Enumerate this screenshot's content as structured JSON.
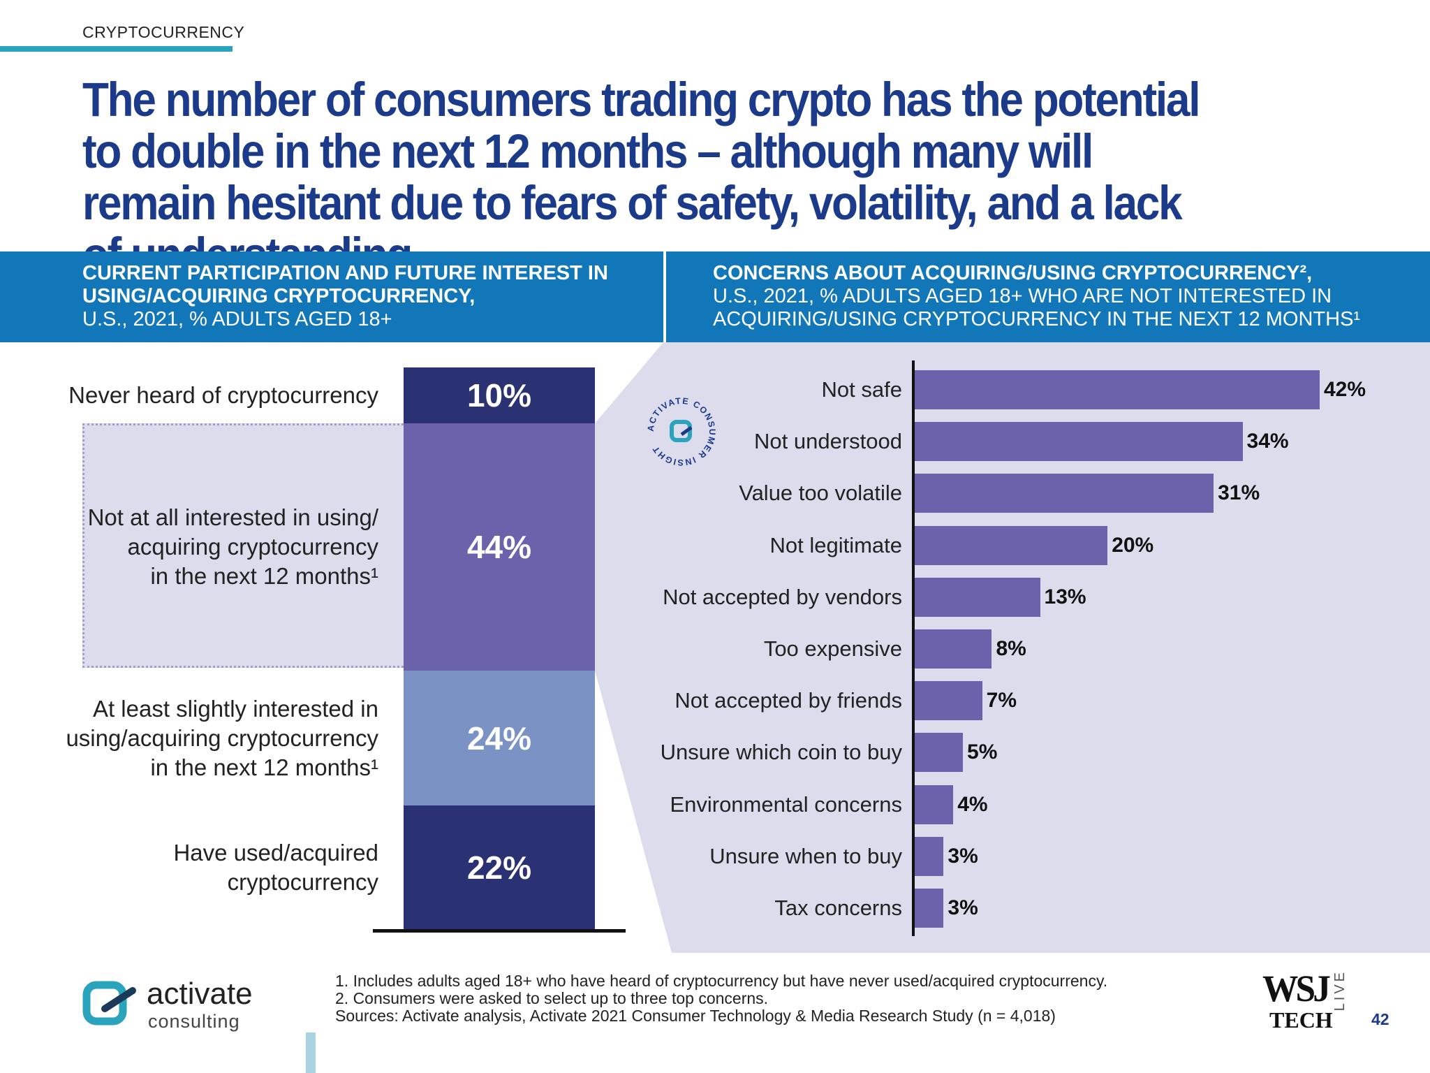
{
  "section_label": "CRYPTOCURRENCY",
  "headline": "The number of consumers trading crypto has the potential to double in the next 12 months – although many will remain hesitant due to fears of safety, volatility, and a lack of understanding",
  "left_header": {
    "title": "CURRENT PARTICIPATION AND FUTURE INTEREST IN USING/ACQUIRING CRYPTOCURRENCY,",
    "subtitle": "U.S., 2021, % ADULTS AGED 18+"
  },
  "right_header": {
    "title": "CONCERNS ABOUT ACQUIRING/USING CRYPTOCURRENCY²,",
    "subtitle": "U.S., 2021, % ADULTS AGED 18+ WHO ARE NOT INTERESTED IN ACQUIRING/USING CRYPTOCURRENCY IN THE NEXT 12 MONTHS¹"
  },
  "badge_text": "ACTIVATE CONSUMER INSIGHT",
  "chart_data": [
    {
      "type": "bar",
      "orientation": "stacked-vertical",
      "series": [
        {
          "name": "Never heard of cryptocurrency",
          "value": 10,
          "label": "10%",
          "color": "#2b3274"
        },
        {
          "name": "Not at all interested in using/ acquiring cryptocurrency in the next 12 months¹",
          "value": 44,
          "label": "44%",
          "color": "#6a62ab"
        },
        {
          "name": "At least slightly interested in using/acquiring cryptocurrency in the next 12 months¹",
          "value": 24,
          "label": "24%",
          "color": "#7b93c4"
        },
        {
          "name": "Have used/acquired cryptocurrency",
          "value": 22,
          "label": "22%",
          "color": "#2b3274"
        }
      ]
    },
    {
      "type": "bar",
      "orientation": "horizontal",
      "categories": [
        "Not safe",
        "Not understood",
        "Value too volatile",
        "Not legitimate",
        "Not accepted by vendors",
        "Too expensive",
        "Not accepted by friends",
        "Unsure which coin to buy",
        "Environmental concerns",
        "Unsure when to buy",
        "Tax concerns"
      ],
      "values": [
        42,
        34,
        31,
        20,
        13,
        8,
        7,
        5,
        4,
        3,
        3
      ],
      "value_labels": [
        "42%",
        "34%",
        "31%",
        "20%",
        "13%",
        "8%",
        "7%",
        "5%",
        "4%",
        "3%",
        "3%"
      ],
      "bar_color": "#6a62ab",
      "xlim": [
        0,
        42
      ]
    }
  ],
  "footnotes": [
    "1. Includes adults aged 18+ who have heard of cryptocurrency but have never used/acquired cryptocurrency.",
    "2. Consumers were asked to select up to three top concerns.",
    "Sources: Activate analysis, Activate 2021 Consumer Technology & Media Research Study (n = 4,018)"
  ],
  "brand": {
    "word1": "activate",
    "word2": "consulting"
  },
  "wsj": {
    "top": "WSJ",
    "bottom": "TECH",
    "side": "LIVE"
  },
  "page_number": "42",
  "colors": {
    "navy": "#1b3a8a",
    "band": "#1177b9",
    "panel": "#dcdcec",
    "accent": "#2aa3bd"
  }
}
